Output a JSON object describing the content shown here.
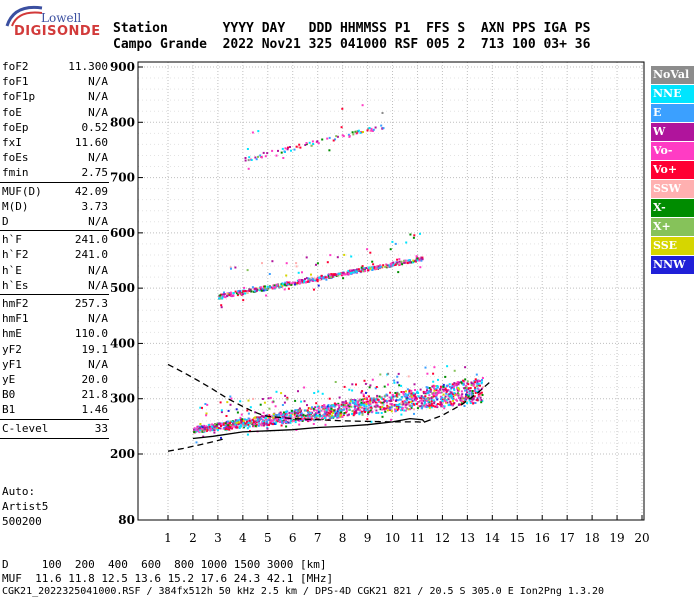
{
  "logo": {
    "word": "Lowell",
    "name": "DIGISONDE"
  },
  "header": {
    "line1": "Station       YYYY DAY   DDD HHMMSS P1  FFS S  AXN PPS IGA PS",
    "line2": "Campo Grande  2022 Nov21 325 041000 RSF 005 2  713 100 03+ 36"
  },
  "params": {
    "group1": [
      {
        "k": "foF2",
        "v": "11.300"
      },
      {
        "k": "foF1",
        "v": "N/A"
      },
      {
        "k": "foF1p",
        "v": "N/A"
      },
      {
        "k": "foE",
        "v": "N/A"
      },
      {
        "k": "foEp",
        "v": "0.52"
      },
      {
        "k": "fxI",
        "v": "11.60"
      },
      {
        "k": "foEs",
        "v": "N/A"
      },
      {
        "k": "fmin",
        "v": "2.75"
      }
    ],
    "group2": [
      {
        "k": "MUF(D)",
        "v": "42.09"
      },
      {
        "k": "M(D)",
        "v": "3.73"
      },
      {
        "k": "D",
        "v": "N/A"
      }
    ],
    "group3": [
      {
        "k": "h`F",
        "v": "241.0"
      },
      {
        "k": "h`F2",
        "v": "241.0"
      },
      {
        "k": "h`E",
        "v": "N/A"
      },
      {
        "k": "h`Es",
        "v": "N/A"
      }
    ],
    "group4": [
      {
        "k": "hmF2",
        "v": "257.3"
      },
      {
        "k": "hmF1",
        "v": "N/A"
      },
      {
        "k": "hmE",
        "v": "110.0"
      },
      {
        "k": "yF2",
        "v": "19.1"
      },
      {
        "k": "yF1",
        "v": "N/A"
      },
      {
        "k": "yE",
        "v": "20.0"
      },
      {
        "k": "B0",
        "v": "21.8"
      },
      {
        "k": "B1",
        "v": "1.46"
      }
    ],
    "group5": [
      {
        "k": "C-level",
        "v": "33"
      }
    ]
  },
  "auto": {
    "line1": "Auto:",
    "line2": "Artist5",
    "line3": "500200"
  },
  "legend": [
    {
      "label": "NoVal",
      "color": "#8c8c8c"
    },
    {
      "label": "NNE",
      "color": "#00e5ff"
    },
    {
      "label": "E",
      "color": "#3ba0ff"
    },
    {
      "label": "W",
      "color": "#b0149c"
    },
    {
      "label": "Vo-",
      "color": "#ff3cc4"
    },
    {
      "label": "Vo+",
      "color": "#ff0033"
    },
    {
      "label": "SSW",
      "color": "#ffb0b0"
    },
    {
      "label": "X-",
      "color": "#008c00"
    },
    {
      "label": "X+",
      "color": "#86c25a"
    },
    {
      "label": "SSE",
      "color": "#d6d600"
    },
    {
      "label": "NNW",
      "color": "#2020d8"
    }
  ],
  "footer": {
    "line1": "D     100  200  400  600  800 1000 1500 3000 [km]",
    "line2": "MUF  11.6 11.8 12.5 13.6 15.2 17.6 24.3 42.1 [MHz]",
    "line3": "CGK21_2022325041000.RSF / 384fx512h 50 kHz 2.5 km / DPS-4D CGK21 821 / 20.5 S 305.0 E Ion2Png 1.3.20"
  },
  "chart_data": {
    "type": "scatter",
    "xlim": [
      1,
      20
    ],
    "ylim": [
      80,
      900
    ],
    "x_ticks": [
      1,
      2,
      3,
      4,
      5,
      6,
      7,
      8,
      9,
      10,
      11,
      12,
      13,
      14,
      15,
      16,
      17,
      18,
      19,
      20
    ],
    "y_ticks": [
      80,
      200,
      300,
      400,
      500,
      600,
      700,
      800,
      900
    ],
    "grid": true,
    "legend_position": "right",
    "point_bands": [
      {
        "name": "F-region 1st hop",
        "x_range": [
          2.0,
          13.6
        ],
        "y_start": [
          240,
          250
        ],
        "y_end": [
          295,
          340
        ],
        "density": 1700
      },
      {
        "name": "F-region 2nd hop",
        "x_range": [
          3.0,
          11.2
        ],
        "y_start": [
          482,
          490
        ],
        "y_end": [
          552,
          558
        ],
        "density": 550
      },
      {
        "name": "F-region 3rd hop",
        "x_range": [
          4.0,
          9.6
        ],
        "y_start": [
          730,
          738
        ],
        "y_end": [
          790,
          798
        ],
        "density": 90
      }
    ],
    "profile_curve": {
      "x": [
        1.0,
        1.6,
        2.2,
        2.8,
        3.4,
        4.0,
        4.4,
        4.7,
        5.0,
        6.0,
        7.0,
        8.0,
        9.0,
        10.0,
        10.6,
        11.0,
        11.2,
        11.3
      ],
      "y": [
        362,
        348,
        333,
        317,
        300,
        286,
        277,
        272,
        268,
        264,
        262,
        260,
        259,
        258,
        258,
        258,
        257.5,
        257.3
      ]
    },
    "virtual_height_trace": {
      "x": [
        2.0,
        2.8,
        4.0,
        5.0,
        6.0,
        7.0,
        8.0,
        9.0,
        10.0,
        10.7,
        11.2,
        11.3
      ],
      "y": [
        228,
        232,
        240,
        242,
        244,
        248,
        250,
        253,
        258,
        264,
        262,
        257
      ]
    },
    "lower_profile": {
      "x": [
        1.0,
        1.6,
        2.2,
        2.8,
        3.3
      ],
      "y": [
        205,
        210,
        216,
        222,
        228
      ]
    },
    "upper_extension": {
      "x": [
        11.3,
        12.0,
        12.8,
        13.4,
        13.9
      ],
      "y": [
        258,
        270,
        290,
        310,
        330
      ]
    }
  }
}
